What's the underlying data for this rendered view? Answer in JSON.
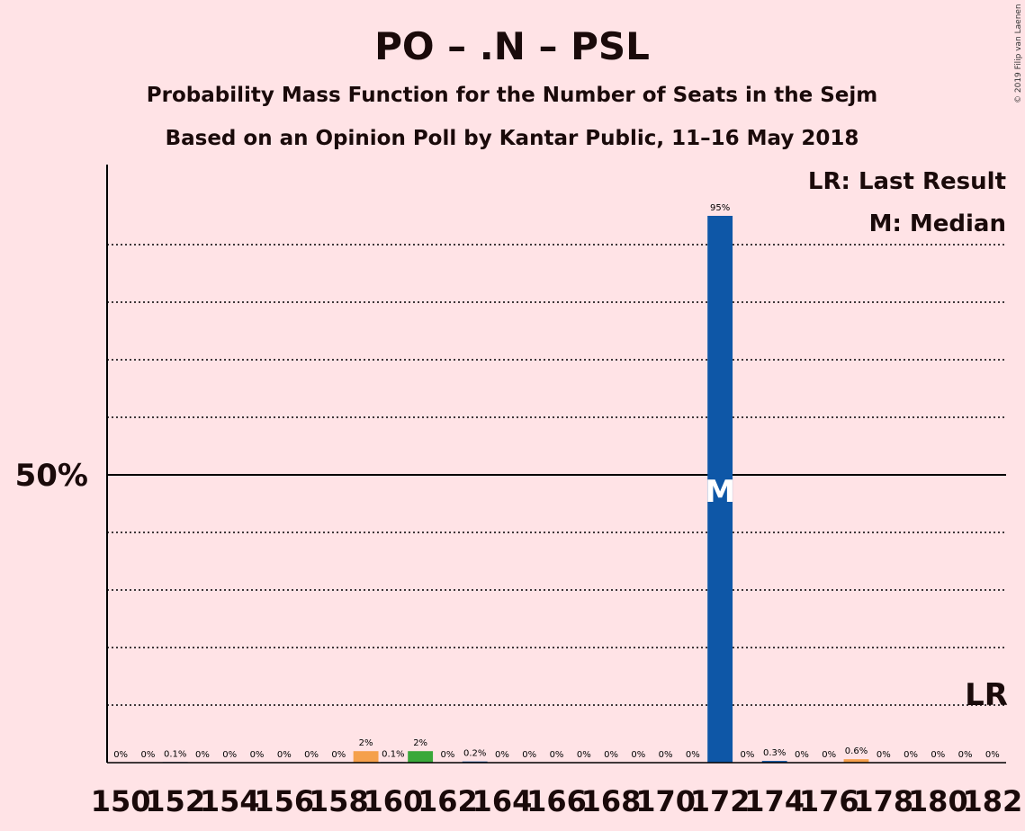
{
  "copyright": "© 2019 Filip van Laenen",
  "chart_data": {
    "type": "bar",
    "title": "PO – .N – PSL",
    "subtitle1": "Probability Mass Function for the Number of Seats in the Sejm",
    "subtitle2": "Based on an Opinion Poll by Kantar Public, 11–16 May 2018",
    "ylim": [
      0,
      100
    ],
    "y_major_label": "50%",
    "y_major_value": 50,
    "y_minor_ticks": [
      10,
      20,
      30,
      40,
      60,
      70,
      80,
      90
    ],
    "categories": [
      150,
      151,
      152,
      153,
      154,
      155,
      156,
      157,
      158,
      159,
      160,
      161,
      162,
      163,
      164,
      165,
      166,
      167,
      168,
      169,
      170,
      171,
      172,
      173,
      174,
      175,
      176,
      177,
      178,
      179,
      180,
      181,
      182
    ],
    "x_tick_labels": [
      "150",
      "152",
      "154",
      "156",
      "158",
      "160",
      "162",
      "164",
      "166",
      "168",
      "170",
      "172",
      "174",
      "176",
      "178",
      "180",
      "182"
    ],
    "values": [
      0,
      0,
      0.1,
      0,
      0,
      0,
      0,
      0,
      0,
      2,
      0.1,
      2,
      0,
      0.2,
      0,
      0,
      0,
      0,
      0,
      0,
      0,
      0,
      95,
      0,
      0.3,
      0,
      0,
      0.6,
      0,
      0,
      0,
      0,
      0
    ],
    "data_labels": [
      "0%",
      "0%",
      "0.1%",
      "0%",
      "0%",
      "0%",
      "0%",
      "0%",
      "0%",
      "2%",
      "0.1%",
      "2%",
      "0%",
      "0.2%",
      "0%",
      "0%",
      "0%",
      "0%",
      "0%",
      "0%",
      "0%",
      "0%",
      "95%",
      "0%",
      "0.3%",
      "0%",
      "0%",
      "0.6%",
      "0%",
      "0%",
      "0%",
      "0%",
      "0%"
    ],
    "bar_colors": [
      "#0e57a7",
      "#0e57a7",
      "#0e57a7",
      "#0e57a7",
      "#0e57a7",
      "#0e57a7",
      "#0e57a7",
      "#0e57a7",
      "#0e57a7",
      "#f5a04c",
      "#0e57a7",
      "#3aa83a",
      "#0e57a7",
      "#0e57a7",
      "#0e57a7",
      "#0e57a7",
      "#0e57a7",
      "#0e57a7",
      "#0e57a7",
      "#0e57a7",
      "#0e57a7",
      "#0e57a7",
      "#0e57a7",
      "#0e57a7",
      "#0e57a7",
      "#0e57a7",
      "#0e57a7",
      "#f5a04c",
      "#0e57a7",
      "#0e57a7",
      "#0e57a7",
      "#0e57a7",
      "#0e57a7"
    ],
    "median_seat": 172,
    "median_marker": "M",
    "last_result_seat": 182,
    "last_result_marker": "LR",
    "legend": [
      "LR: Last Result",
      "M: Median"
    ],
    "legend_position": "top-right",
    "grid": true
  }
}
